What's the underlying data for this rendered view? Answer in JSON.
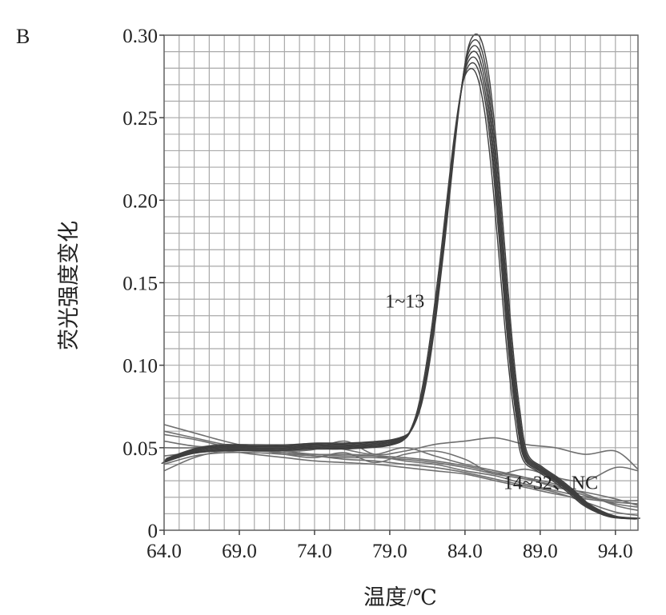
{
  "panel_label": "B",
  "chart_data": {
    "type": "line",
    "xlabel": "温度/℃",
    "ylabel": "荧光强度变化",
    "xlim": [
      64.0,
      95.5
    ],
    "ylim": [
      0,
      0.3
    ],
    "x_ticks": [
      "64.0",
      "69.0",
      "74.0",
      "79.0",
      "84.0",
      "89.0",
      "94.0"
    ],
    "y_ticks": [
      "0",
      "0.05",
      "0.10",
      "0.15",
      "0.20",
      "0.25",
      "0.30"
    ],
    "grid": true,
    "annotations": [
      {
        "text": "1~13",
        "x": 80.0,
        "y": 0.135
      },
      {
        "text": "14~32、NC",
        "x": 89.7,
        "y": 0.025
      }
    ],
    "series": [
      {
        "group": "1~13",
        "x": [
          64,
          66,
          68,
          70,
          72,
          74,
          76,
          78,
          79,
          80,
          80.5,
          81,
          81.5,
          82,
          82.5,
          83,
          83.5,
          84,
          84.5,
          85,
          85.5,
          86,
          86.5,
          87,
          87.5,
          88,
          89,
          90,
          91,
          92,
          93,
          94,
          95.5
        ],
        "y": [
          0.042,
          0.048,
          0.05,
          0.05,
          0.05,
          0.051,
          0.051,
          0.052,
          0.053,
          0.056,
          0.062,
          0.075,
          0.098,
          0.13,
          0.168,
          0.21,
          0.25,
          0.28,
          0.29,
          0.285,
          0.262,
          0.22,
          0.165,
          0.11,
          0.07,
          0.045,
          0.037,
          0.031,
          0.024,
          0.016,
          0.011,
          0.008,
          0.007
        ]
      },
      {
        "group": "14~32、NC",
        "x": [
          64,
          66,
          68,
          70,
          72,
          74,
          76,
          78,
          80,
          82,
          84,
          86,
          88,
          90,
          92,
          94,
          95.5
        ],
        "y": [
          0.06,
          0.056,
          0.052,
          0.049,
          0.047,
          0.046,
          0.045,
          0.045,
          0.044,
          0.042,
          0.039,
          0.035,
          0.032,
          0.028,
          0.022,
          0.015,
          0.012
        ]
      },
      {
        "group": "14~32、NC",
        "x": [
          64,
          66,
          68,
          70,
          72,
          74,
          76,
          78,
          80,
          82,
          84,
          86,
          88,
          90,
          92,
          94,
          95.5
        ],
        "y": [
          0.036,
          0.044,
          0.048,
          0.048,
          0.047,
          0.045,
          0.044,
          0.044,
          0.043,
          0.041,
          0.038,
          0.034,
          0.031,
          0.027,
          0.021,
          0.016,
          0.014
        ]
      },
      {
        "group": "14~32、NC",
        "x": [
          64,
          66,
          68,
          70,
          72,
          74,
          76,
          78,
          80,
          82,
          84,
          86,
          88,
          90,
          92,
          94,
          95.5
        ],
        "y": [
          0.064,
          0.059,
          0.054,
          0.05,
          0.048,
          0.049,
          0.054,
          0.046,
          0.048,
          0.052,
          0.054,
          0.056,
          0.052,
          0.05,
          0.046,
          0.048,
          0.037
        ]
      },
      {
        "group": "14~32、NC",
        "x": [
          64,
          66,
          68,
          70,
          72,
          74,
          76,
          78,
          80,
          82,
          84,
          86,
          88,
          90,
          92,
          94,
          95.5
        ],
        "y": [
          0.054,
          0.051,
          0.05,
          0.049,
          0.046,
          0.044,
          0.047,
          0.041,
          0.046,
          0.048,
          0.043,
          0.034,
          0.037,
          0.032,
          0.03,
          0.038,
          0.036
        ]
      },
      {
        "group": "14~32、NC",
        "x": [
          64,
          66,
          68,
          70,
          72,
          74,
          76,
          78,
          80,
          82,
          84,
          86,
          88,
          90,
          92,
          94,
          95.5
        ],
        "y": [
          0.045,
          0.047,
          0.048,
          0.046,
          0.044,
          0.042,
          0.041,
          0.04,
          0.038,
          0.036,
          0.034,
          0.03,
          0.026,
          0.022,
          0.019,
          0.017,
          0.016
        ]
      },
      {
        "group": "14~32、NC",
        "x": [
          64,
          66,
          68,
          70,
          72,
          74,
          76,
          78,
          80,
          82,
          84,
          86,
          88,
          90,
          92,
          94,
          95.5
        ],
        "y": [
          0.05,
          0.05,
          0.052,
          0.05,
          0.048,
          0.046,
          0.046,
          0.045,
          0.042,
          0.04,
          0.036,
          0.033,
          0.028,
          0.024,
          0.02,
          0.018,
          0.018
        ]
      },
      {
        "group": "14~32、NC",
        "x": [
          64,
          66,
          68,
          70,
          72,
          74,
          76,
          78,
          80,
          82,
          84,
          86,
          88,
          90,
          92,
          94,
          95.5
        ],
        "y": [
          0.058,
          0.055,
          0.051,
          0.048,
          0.049,
          0.052,
          0.049,
          0.046,
          0.05,
          0.045,
          0.04,
          0.036,
          0.032,
          0.026,
          0.023,
          0.019,
          0.015
        ]
      },
      {
        "group": "14~32、NC",
        "x": [
          64,
          66,
          68,
          70,
          72,
          74,
          76,
          78,
          80,
          82,
          84,
          86,
          88,
          90,
          92,
          94,
          95.5
        ],
        "y": [
          0.04,
          0.045,
          0.047,
          0.047,
          0.046,
          0.045,
          0.043,
          0.042,
          0.04,
          0.038,
          0.035,
          0.031,
          0.027,
          0.023,
          0.017,
          0.011,
          0.009
        ]
      }
    ]
  }
}
